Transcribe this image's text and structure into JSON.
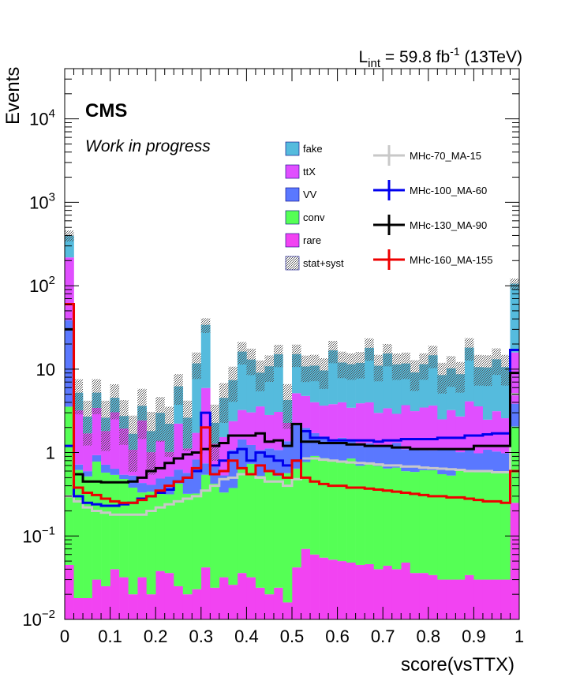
{
  "chart_data": {
    "type": "bar",
    "stacked": true,
    "yscale": "log",
    "xlim": [
      0,
      1
    ],
    "ylim": [
      0.01,
      40000
    ],
    "xlabel": "score(vsTTX)",
    "ylabel": "Events",
    "experiment_label": "CMS",
    "status_label": "Work in progress",
    "lumi_label": {
      "prefix": "L",
      "sub": "int",
      "value": " = 59.8 fb",
      "sup": "-1",
      "suffix": " (13TeV)"
    },
    "x_ticks": [
      {
        "v": 0,
        "label": "0"
      },
      {
        "v": 0.1,
        "label": "0.1"
      },
      {
        "v": 0.2,
        "label": "0.2"
      },
      {
        "v": 0.3,
        "label": "0.3"
      },
      {
        "v": 0.4,
        "label": "0.4"
      },
      {
        "v": 0.5,
        "label": "0.5"
      },
      {
        "v": 0.6,
        "label": "0.6"
      },
      {
        "v": 0.7,
        "label": "0.7"
      },
      {
        "v": 0.8,
        "label": "0.8"
      },
      {
        "v": 0.9,
        "label": "0.9"
      },
      {
        "v": 1,
        "label": "1"
      }
    ],
    "y_ticks": [
      {
        "v": 0.01,
        "base": "10",
        "exp": "−2"
      },
      {
        "v": 0.1,
        "base": "10",
        "exp": "−1"
      },
      {
        "v": 1,
        "base": "1",
        "exp": ""
      },
      {
        "v": 10,
        "base": "10",
        "exp": ""
      },
      {
        "v": 100,
        "base": "10",
        "exp": "2"
      },
      {
        "v": 1000,
        "base": "10",
        "exp": "3"
      },
      {
        "v": 10000,
        "base": "10",
        "exp": "4"
      }
    ],
    "n_bins": 50,
    "backgrounds": [
      {
        "name": "rare",
        "color": "#f243f2",
        "values": [
          0.045,
          0.018,
          0.018,
          0.03,
          0.025,
          0.04,
          0.032,
          0.02,
          0.032,
          0.02,
          0.038,
          0.036,
          0.025,
          0.02,
          0.023,
          0.042,
          0.024,
          0.032,
          0.026,
          0.036,
          0.032,
          0.024,
          0.02,
          0.024,
          0.016,
          0.042,
          0.07,
          0.06,
          0.055,
          0.052,
          0.05,
          0.048,
          0.045,
          0.046,
          0.04,
          0.044,
          0.04,
          0.048,
          0.036,
          0.036,
          0.034,
          0.03,
          0.03,
          0.03,
          0.034,
          0.03,
          0.03,
          0.03,
          0.03,
          0.25
        ]
      },
      {
        "name": "conv",
        "color": "#55ff55",
        "values": [
          3.5,
          0.6,
          0.5,
          0.75,
          0.55,
          0.5,
          0.45,
          0.36,
          0.3,
          0.32,
          0.3,
          0.28,
          0.4,
          0.3,
          0.3,
          0.5,
          0.4,
          0.3,
          0.35,
          0.6,
          0.7,
          0.5,
          0.6,
          0.5,
          0.55,
          0.6,
          0.7,
          0.85,
          0.8,
          0.75,
          0.75,
          0.8,
          0.65,
          0.7,
          0.65,
          0.6,
          0.62,
          0.55,
          0.55,
          0.58,
          0.58,
          0.52,
          0.5,
          0.58,
          0.58,
          0.55,
          0.55,
          0.55,
          0.55,
          1.8
        ]
      },
      {
        "name": "VV",
        "color": "#5a78ff",
        "values": [
          35,
          0.1,
          0.08,
          0.15,
          0.14,
          0.1,
          0.06,
          0.15,
          0.1,
          0.07,
          0.15,
          0.2,
          0.2,
          0.25,
          0.5,
          0.2,
          0.25,
          0.2,
          0.7,
          0.8,
          0.5,
          0.55,
          0.5,
          0.55,
          0.8,
          1.5,
          1.2,
          0.8,
          0.7,
          0.6,
          0.7,
          0.6,
          0.6,
          0.55,
          0.5,
          0.55,
          0.65,
          0.5,
          0.55,
          0.45,
          0.45,
          0.55,
          0.6,
          0.4,
          0.5,
          0.4,
          0.5,
          0.45,
          0.4,
          1.8
        ]
      },
      {
        "name": "ttX",
        "color": "#e04fff",
        "values": [
          180,
          2.5,
          1.1,
          2.5,
          1.1,
          2.4,
          1.4,
          0.55,
          2.0,
          0.6,
          0.9,
          0.5,
          1.6,
          0.55,
          0.9,
          5.2,
          0.6,
          1.0,
          1.3,
          1.8,
          1.8,
          2.5,
          1.7,
          2.0,
          0.9,
          3.0,
          2.8,
          2.3,
          2.1,
          2.4,
          2.5,
          2.0,
          2.6,
          2.7,
          1.8,
          2.2,
          1.6,
          2.6,
          2.0,
          2.4,
          2.6,
          1.4,
          2.1,
          1.7,
          3.0,
          2.6,
          1.4,
          2.1,
          1.6,
          12
        ]
      },
      {
        "name": "fake",
        "color": "#55bbdd",
        "values": [
          180,
          2.0,
          1.0,
          1.8,
          0.8,
          1.5,
          0.8,
          0.6,
          1.2,
          0.8,
          1.6,
          1.2,
          4.0,
          1.5,
          10,
          28,
          1.0,
          3.0,
          5.0,
          13,
          10,
          5.5,
          8.0,
          12,
          2.0,
          10,
          6.0,
          7.0,
          6.0,
          13,
          8.0,
          8.0,
          8.0,
          14,
          8.0,
          12,
          8.5,
          8.0,
          6.0,
          8.0,
          11,
          6.0,
          7.0,
          6.0,
          14,
          7.0,
          8.0,
          10,
          8.0,
          90
        ]
      }
    ],
    "uncertainty": {
      "name": "stat+syst",
      "half_width_fraction": [
        0.15,
        0.45,
        0.55,
        0.45,
        0.6,
        0.45,
        0.55,
        0.65,
        0.6,
        0.7,
        0.55,
        0.6,
        0.4,
        0.6,
        0.35,
        0.2,
        0.65,
        0.5,
        0.45,
        0.3,
        0.35,
        0.4,
        0.35,
        0.3,
        0.55,
        0.3,
        0.35,
        0.35,
        0.4,
        0.3,
        0.35,
        0.35,
        0.35,
        0.3,
        0.35,
        0.3,
        0.35,
        0.35,
        0.4,
        0.35,
        0.3,
        0.4,
        0.4,
        0.4,
        0.3,
        0.4,
        0.4,
        0.35,
        0.4,
        0.15
      ]
    },
    "signals": [
      {
        "name": "MHc-70_MA-15",
        "color": "#c8c8c8",
        "values": [
          0.3,
          0.26,
          0.22,
          0.2,
          0.19,
          0.18,
          0.18,
          0.18,
          0.18,
          0.2,
          0.22,
          0.24,
          0.26,
          0.28,
          0.3,
          0.35,
          0.4,
          0.48,
          0.5,
          0.55,
          0.55,
          0.5,
          0.45,
          0.45,
          0.4,
          0.48,
          0.85,
          0.85,
          0.82,
          0.8,
          0.78,
          0.76,
          0.75,
          0.74,
          0.72,
          0.7,
          0.7,
          0.68,
          0.68,
          0.66,
          0.65,
          0.64,
          0.63,
          0.62,
          0.6,
          0.6,
          0.6,
          0.58,
          0.58,
          5.0
        ]
      },
      {
        "name": "MHc-100_MA-60",
        "color": "#0000ee",
        "values": [
          1.2,
          0.3,
          0.25,
          0.24,
          0.23,
          0.23,
          0.24,
          0.25,
          0.28,
          0.3,
          0.33,
          0.36,
          0.45,
          0.5,
          0.6,
          3.0,
          0.7,
          0.8,
          1.0,
          1.1,
          0.8,
          1.0,
          0.9,
          0.8,
          0.7,
          0.8,
          1.8,
          1.5,
          1.5,
          1.4,
          1.4,
          1.4,
          1.4,
          1.4,
          1.35,
          1.4,
          1.4,
          1.45,
          1.45,
          1.45,
          1.45,
          1.5,
          1.5,
          1.5,
          1.6,
          1.6,
          1.65,
          1.7,
          1.7,
          17
        ]
      },
      {
        "name": "MHc-130_MA-90",
        "color": "#000000",
        "values": [
          30,
          0.55,
          0.45,
          0.45,
          0.44,
          0.44,
          0.44,
          0.45,
          0.5,
          0.6,
          0.65,
          0.75,
          0.85,
          0.95,
          1.0,
          1.1,
          1.2,
          1.3,
          1.6,
          1.6,
          1.6,
          1.7,
          1.35,
          1.4,
          1.2,
          2.2,
          1.35,
          1.35,
          1.3,
          1.3,
          1.3,
          1.25,
          1.25,
          1.2,
          1.2,
          1.2,
          1.15,
          1.15,
          1.1,
          1.1,
          1.1,
          1.1,
          1.1,
          1.1,
          1.1,
          1.2,
          1.2,
          1.2,
          1.2,
          9.0
        ]
      },
      {
        "name": "MHc-160_MA-155",
        "color": "#ee0000",
        "values": [
          60,
          0.38,
          0.33,
          0.31,
          0.28,
          0.26,
          0.25,
          0.25,
          0.27,
          0.3,
          0.35,
          0.4,
          0.45,
          0.5,
          0.65,
          2.0,
          0.55,
          0.6,
          0.8,
          0.65,
          0.55,
          0.7,
          0.6,
          0.55,
          0.5,
          0.8,
          0.5,
          0.45,
          0.42,
          0.4,
          0.4,
          0.38,
          0.38,
          0.37,
          0.36,
          0.35,
          0.34,
          0.33,
          0.32,
          0.31,
          0.3,
          0.3,
          0.29,
          0.29,
          0.28,
          0.27,
          0.26,
          0.26,
          0.25,
          0.6
        ]
      }
    ],
    "legend": {
      "placement": "top-center / top-right"
    }
  }
}
